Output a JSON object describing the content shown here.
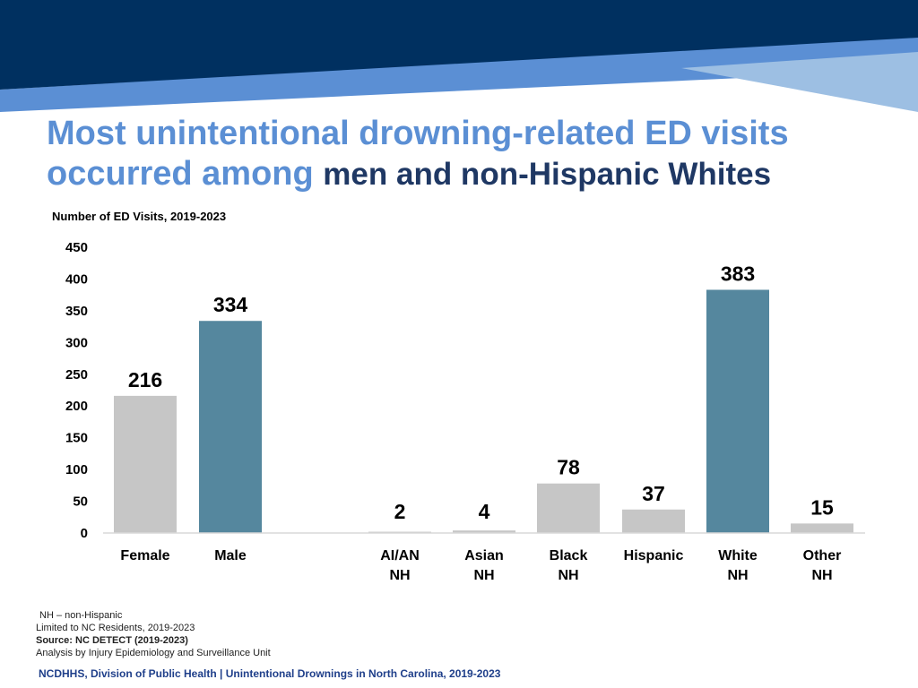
{
  "title": {
    "line1": "Most unintentional drowning-related ED visits",
    "line2_lead": "occurred among",
    "line2_emph": "men and non-Hispanic Whites"
  },
  "chart_data": {
    "type": "bar",
    "subtitle": "Number of ED Visits, 2019-2023",
    "categories": [
      [
        "Female"
      ],
      [
        "Male"
      ],
      [
        "AI/AN",
        "NH"
      ],
      [
        "Asian",
        "NH"
      ],
      [
        "Black",
        "NH"
      ],
      [
        "Hispanic"
      ],
      [
        "White",
        "NH"
      ],
      [
        "Other",
        "NH"
      ]
    ],
    "values": [
      216,
      334,
      2,
      4,
      78,
      37,
      383,
      15
    ],
    "highlight": [
      false,
      true,
      false,
      false,
      false,
      false,
      true,
      false
    ],
    "groups": [
      "sex",
      "sex",
      "race",
      "race",
      "race",
      "race",
      "race",
      "race"
    ],
    "ylim": [
      0,
      450
    ],
    "yticks": [
      0,
      50,
      100,
      150,
      200,
      250,
      300,
      350,
      400,
      450
    ],
    "grid": false,
    "colors": {
      "highlight": "#55879e",
      "default": "#c6c6c6",
      "axis": "#d9d9d9"
    }
  },
  "notes": {
    "nh": "NH – non-Hispanic",
    "limited": "Limited to NC Residents, 2019-2023",
    "source": "Source: NC DETECT (2019-2023)",
    "analysis": "Analysis by Injury Epidemiology and Surveillance Unit"
  },
  "footer": "NCDHHS, Division of Public Health | Unintentional Drownings in North Carolina, 2019-2023",
  "colors": {
    "banner_dark": "#003060",
    "banner_light": "#5b8fd4",
    "banner_pale": "#9dbfe3"
  }
}
